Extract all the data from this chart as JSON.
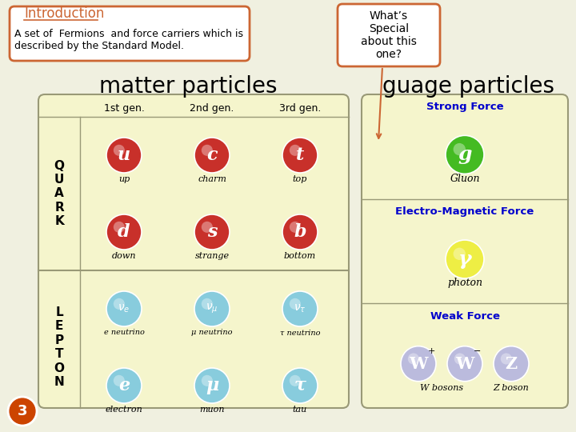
{
  "bg_color": "#f0f0e0",
  "title": "Introduction",
  "subtitle": "A set of  Fermions  and force carriers which is\ndescribed by the Standard Model.",
  "callout": "What’s\nSpecial\nabout this\none?",
  "matter_title": "matter particles",
  "gauge_title": "guage particles",
  "slide_number": "3",
  "gen_labels": [
    "1st gen.",
    "2nd gen.",
    "3rd gen."
  ],
  "quark_top": [
    {
      "symbol": "u",
      "name": "up"
    },
    {
      "symbol": "c",
      "name": "charm"
    },
    {
      "symbol": "t",
      "name": "top"
    }
  ],
  "quark_bot": [
    {
      "symbol": "d",
      "name": "down"
    },
    {
      "symbol": "s",
      "name": "strange"
    },
    {
      "symbol": "b",
      "name": "bottom"
    }
  ],
  "nu_names": [
    "e neutrino",
    "μ neutrino",
    "τ neutrino"
  ],
  "charged_names": [
    "electron",
    "muon",
    "tau"
  ],
  "charged_syms": [
    "e",
    "μ",
    "τ"
  ],
  "quark_color": "#c8302a",
  "lepton_color": "#88ccdd",
  "strong_force_label": "Strong Force",
  "strong_symbol": "g",
  "strong_name": "Gluon",
  "strong_color": "#44bb22",
  "em_force_label": "Electro-Magnetic Force",
  "em_symbol": "γ",
  "em_name": "photon",
  "em_color": "#eeee44",
  "weak_force_label": "Weak Force",
  "weak_syms": [
    "W",
    "W",
    "Z"
  ],
  "weak_sups": [
    "+",
    "−",
    ""
  ],
  "weak_name1": "W bosons",
  "weak_name2": "Z boson",
  "weak_color": "#bbbbdd",
  "border_color": "#cc6633",
  "table_bg": "#f5f5cc",
  "gauge_bg": "#f5f5cc",
  "line_color": "#999977"
}
